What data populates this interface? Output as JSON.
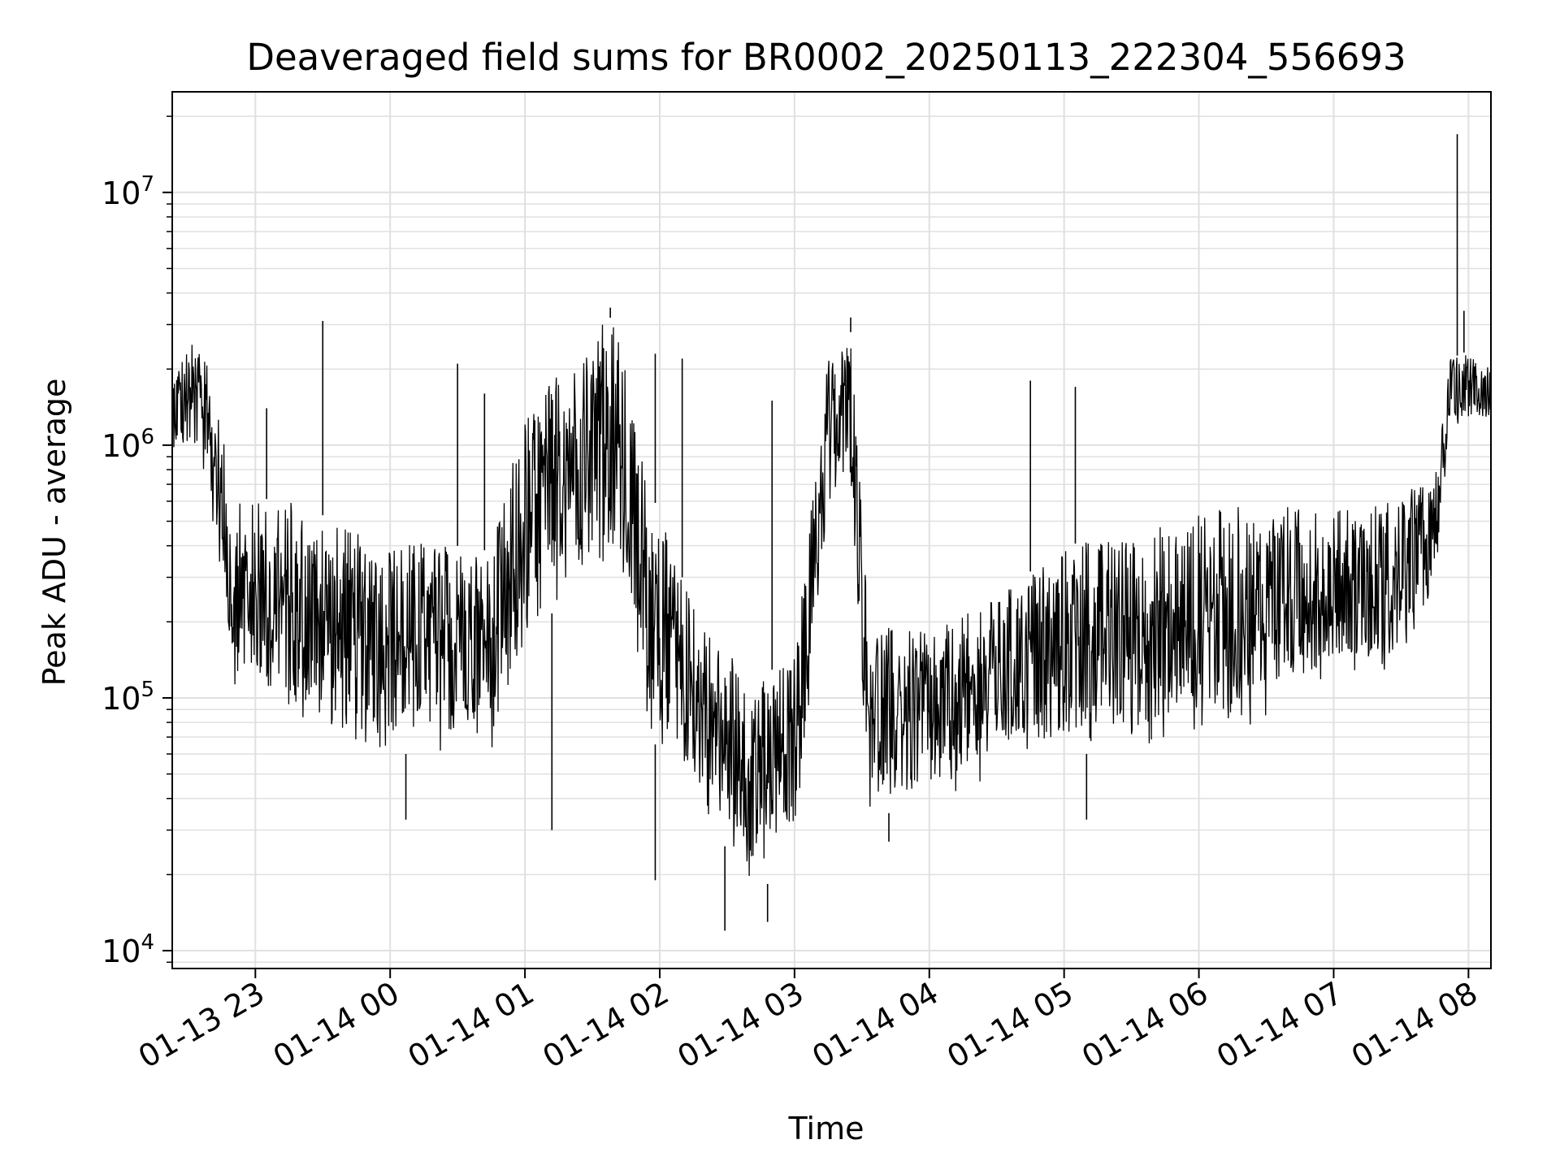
{
  "chart_data": {
    "type": "line",
    "title": "Deaveraged field sums for BR0002_20250113_222304_556693",
    "xlabel": "Time",
    "ylabel": "Peak ADU - average",
    "yscale": "log",
    "ylim": [
      8500,
      25000000
    ],
    "xlim": [
      "2025-01-13 22:23",
      "2025-01-14 08:10"
    ],
    "grid": true,
    "line_color": "#000000",
    "x_ticks": [
      {
        "time": "2025-01-13 23:00",
        "label": "01-13 23"
      },
      {
        "time": "2025-01-14 00:00",
        "label": "01-14 00"
      },
      {
        "time": "2025-01-14 01:00",
        "label": "01-14 01"
      },
      {
        "time": "2025-01-14 02:00",
        "label": "01-14 02"
      },
      {
        "time": "2025-01-14 03:00",
        "label": "01-14 03"
      },
      {
        "time": "2025-01-14 04:00",
        "label": "01-14 04"
      },
      {
        "time": "2025-01-14 05:00",
        "label": "01-14 05"
      },
      {
        "time": "2025-01-14 06:00",
        "label": "01-14 06"
      },
      {
        "time": "2025-01-14 07:00",
        "label": "01-14 07"
      },
      {
        "time": "2025-01-14 08:00",
        "label": "01-14 08"
      }
    ],
    "y_ticks": [
      {
        "value": 10000,
        "base": "10",
        "exp": "4"
      },
      {
        "value": 100000,
        "base": "10",
        "exp": "5"
      },
      {
        "value": 1000000,
        "base": "10",
        "exp": "6"
      },
      {
        "value": 10000000,
        "base": "10",
        "exp": "7"
      }
    ],
    "series": [
      {
        "envelope": [
          {
            "time": "2025-01-13 22:23",
            "low": 900000,
            "high": 2200000
          },
          {
            "time": "2025-01-13 22:35",
            "low": 800000,
            "high": 2700000
          },
          {
            "time": "2025-01-13 22:43",
            "low": 400000,
            "high": 1500000
          },
          {
            "time": "2025-01-13 22:50",
            "low": 110000,
            "high": 600000
          },
          {
            "time": "2025-01-13 23:15",
            "low": 80000,
            "high": 620000
          },
          {
            "time": "2025-01-13 23:45",
            "low": 60000,
            "high": 450000
          },
          {
            "time": "2025-01-14 00:15",
            "low": 60000,
            "high": 420000
          },
          {
            "time": "2025-01-14 00:45",
            "low": 60000,
            "high": 380000
          },
          {
            "time": "2025-01-14 01:00",
            "low": 120000,
            "high": 1400000
          },
          {
            "time": "2025-01-14 01:15",
            "low": 250000,
            "high": 2000000
          },
          {
            "time": "2025-01-14 01:30",
            "low": 350000,
            "high": 2800000
          },
          {
            "time": "2025-01-14 01:40",
            "low": 300000,
            "high": 3300000
          },
          {
            "time": "2025-01-14 01:55",
            "low": 70000,
            "high": 700000
          },
          {
            "time": "2025-01-14 02:10",
            "low": 50000,
            "high": 300000
          },
          {
            "time": "2025-01-14 02:30",
            "low": 25000,
            "high": 150000
          },
          {
            "time": "2025-01-14 02:45",
            "low": 17000,
            "high": 120000
          },
          {
            "time": "2025-01-14 03:00",
            "low": 25000,
            "high": 150000
          },
          {
            "time": "2025-01-14 03:15",
            "low": 500000,
            "high": 2200000
          },
          {
            "time": "2025-01-14 03:25",
            "low": 700000,
            "high": 2800000
          },
          {
            "time": "2025-01-14 03:33",
            "low": 35000,
            "high": 200000
          },
          {
            "time": "2025-01-14 04:00",
            "low": 35000,
            "high": 180000
          },
          {
            "time": "2025-01-14 04:30",
            "low": 50000,
            "high": 250000
          },
          {
            "time": "2025-01-14 05:00",
            "low": 60000,
            "high": 400000
          },
          {
            "time": "2025-01-14 05:30",
            "low": 60000,
            "high": 450000
          },
          {
            "time": "2025-01-14 06:00",
            "low": 70000,
            "high": 550000
          },
          {
            "time": "2025-01-14 06:30",
            "low": 80000,
            "high": 600000
          },
          {
            "time": "2025-01-14 07:00",
            "low": 130000,
            "high": 550000
          },
          {
            "time": "2025-01-14 07:30",
            "low": 120000,
            "high": 650000
          },
          {
            "time": "2025-01-14 07:45",
            "low": 250000,
            "high": 750000
          },
          {
            "time": "2025-01-14 07:52",
            "low": 1200000,
            "high": 2200000
          },
          {
            "time": "2025-01-14 08:10",
            "low": 1200000,
            "high": 2600000
          }
        ],
        "spikes": [
          {
            "time": "2025-01-13 23:30",
            "value": 3100000
          },
          {
            "time": "2025-01-13 23:05",
            "value": 1400000
          },
          {
            "time": "2025-01-14 00:30",
            "value": 2100000
          },
          {
            "time": "2025-01-14 00:42",
            "value": 1600000
          },
          {
            "time": "2025-01-14 01:38",
            "value": 3500000
          },
          {
            "time": "2025-01-14 01:58",
            "value": 2300000
          },
          {
            "time": "2025-01-14 02:10",
            "value": 2200000
          },
          {
            "time": "2025-01-14 02:50",
            "value": 1500000
          },
          {
            "time": "2025-01-14 03:25",
            "value": 3200000
          },
          {
            "time": "2025-01-14 04:45",
            "value": 1800000
          },
          {
            "time": "2025-01-14 05:05",
            "value": 1700000
          },
          {
            "time": "2025-01-14 07:55",
            "value": 17000000
          },
          {
            "time": "2025-01-14 07:58",
            "value": 3400000
          }
        ],
        "dips": [
          {
            "time": "2025-01-14 00:07",
            "value": 33000
          },
          {
            "time": "2025-01-14 01:12",
            "value": 30000
          },
          {
            "time": "2025-01-14 01:58",
            "value": 19000
          },
          {
            "time": "2025-01-14 02:29",
            "value": 12000
          },
          {
            "time": "2025-01-14 02:48",
            "value": 13000
          },
          {
            "time": "2025-01-14 05:10",
            "value": 33000
          },
          {
            "time": "2025-01-14 03:42",
            "value": 27000
          }
        ]
      }
    ]
  }
}
